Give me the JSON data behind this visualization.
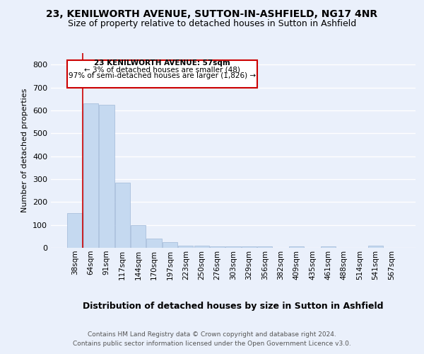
{
  "title": "23, KENILWORTH AVENUE, SUTTON-IN-ASHFIELD, NG17 4NR",
  "subtitle": "Size of property relative to detached houses in Sutton in Ashfield",
  "xlabel": "Distribution of detached houses by size in Sutton in Ashfield",
  "ylabel": "Number of detached properties",
  "categories": [
    "38sqm",
    "64sqm",
    "91sqm",
    "117sqm",
    "144sqm",
    "170sqm",
    "197sqm",
    "223sqm",
    "250sqm",
    "276sqm",
    "303sqm",
    "329sqm",
    "356sqm",
    "382sqm",
    "409sqm",
    "435sqm",
    "461sqm",
    "488sqm",
    "514sqm",
    "541sqm",
    "567sqm"
  ],
  "values": [
    150,
    630,
    625,
    285,
    100,
    40,
    25,
    10,
    8,
    5,
    5,
    5,
    5,
    0,
    5,
    0,
    5,
    0,
    0,
    8,
    0
  ],
  "bar_color": "#c5d9f0",
  "bar_edge_color": "#a0b8d8",
  "bg_color": "#eaf0fb",
  "grid_color": "#ffffff",
  "annotation_box_color": "#ffffff",
  "annotation_box_edge": "#cc0000",
  "annotation_text_line1": "23 KENILWORTH AVENUE: 57sqm",
  "annotation_text_line2": "← 3% of detached houses are smaller (48)",
  "annotation_text_line3": "97% of semi-detached houses are larger (1,826) →",
  "footer_line1": "Contains HM Land Registry data © Crown copyright and database right 2024.",
  "footer_line2": "Contains public sector information licensed under the Open Government Licence v3.0.",
  "ylim": [
    0,
    850
  ],
  "yticks": [
    0,
    100,
    200,
    300,
    400,
    500,
    600,
    700,
    800
  ]
}
